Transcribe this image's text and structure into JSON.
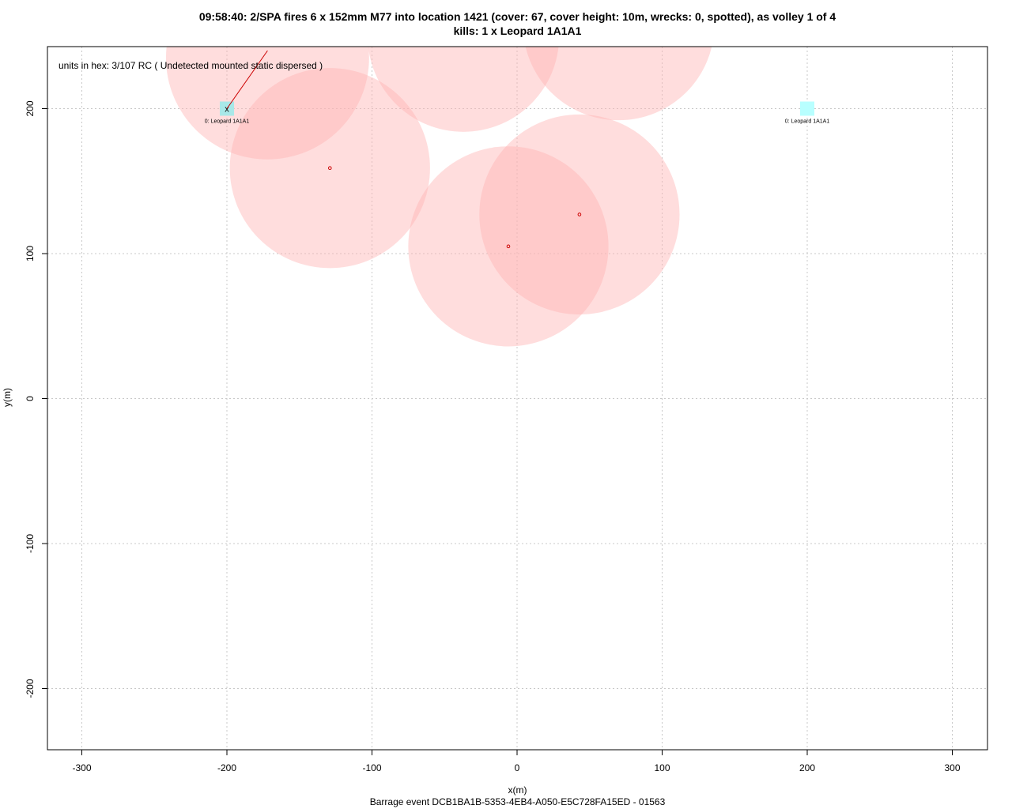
{
  "chart_data": {
    "type": "scatter",
    "title": "09:58:40: 2/SPA fires 6 x 152mm M77 into location 1421 (cover: 67, cover height: 10m, wrecks: 0, spotted), as volley 1 of 4",
    "subtitle": "kills: 1 x Leopard 1A1A1",
    "xlabel": "x(m)",
    "ylabel": "y(m)",
    "footer": "Barrage event DCB1BA1B-5353-4EB4-A050-E5C728FA15ED - 01563",
    "annotation": "units in hex:  3/107 RC ( Undetected mounted static dispersed )",
    "xlim": [
      -300,
      300
    ],
    "ylim": [
      -240,
      240
    ],
    "x_ticks": [
      -300,
      -200,
      -100,
      0,
      100,
      200,
      300
    ],
    "y_ticks": [
      -200,
      -100,
      0,
      100,
      200
    ],
    "grid": true,
    "impacts": [
      {
        "x": -172,
        "y": 235,
        "radius": 70
      },
      {
        "x": -129,
        "y": 159,
        "radius": 69
      },
      {
        "x": -37,
        "y": 250,
        "radius": 66
      },
      {
        "x": 70,
        "y": 258,
        "radius": 66
      },
      {
        "x": -6,
        "y": 105,
        "radius": 69
      },
      {
        "x": 43,
        "y": 127,
        "radius": 69
      }
    ],
    "impact_markers": [
      {
        "x": -129,
        "y": 159
      },
      {
        "x": -6,
        "y": 105
      },
      {
        "x": 43,
        "y": 127
      }
    ],
    "units": [
      {
        "x": -200,
        "y": 200,
        "label": "0: Leopard 1A1A1",
        "killed": true,
        "kill_mark": "x"
      },
      {
        "x": 200,
        "y": 200,
        "label": "0: Leopard 1A1A1",
        "killed": false
      }
    ],
    "fire_line": {
      "from": [
        -200,
        200
      ],
      "to": [
        -172,
        240
      ]
    },
    "colors": {
      "blast": "#ffb3b3",
      "blast_opacity": 0.45,
      "marker": "#cc0000",
      "unit_killed": "#a8e8e8",
      "unit_alive": "#b8ffff",
      "fire_line": "#cc0000",
      "grid": "#c8c8c8"
    }
  }
}
